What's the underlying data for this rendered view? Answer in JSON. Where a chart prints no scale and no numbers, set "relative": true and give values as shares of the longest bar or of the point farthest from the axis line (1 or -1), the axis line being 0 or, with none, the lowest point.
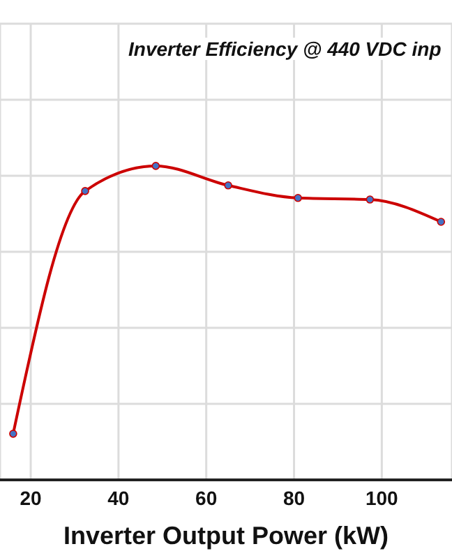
{
  "chart_data": {
    "type": "line",
    "title": "Inverter Efficiency @ 440 VDC inp",
    "xlabel": "Inverter Output Power (kW)",
    "relative": true,
    "xlim": [
      13,
      116
    ],
    "xticks": [
      20,
      40,
      60,
      80,
      100
    ],
    "grid": true,
    "marker": "circle",
    "line_style": "solid",
    "series": [
      {
        "color": "#cc0000",
        "x": [
          16.0,
          32.4,
          48.5,
          65.0,
          80.9,
          97.3,
          113.5
        ],
        "values": [
          0.147,
          0.92,
          1,
          0.938,
          0.898,
          0.893,
          0.822
        ]
      }
    ]
  }
}
